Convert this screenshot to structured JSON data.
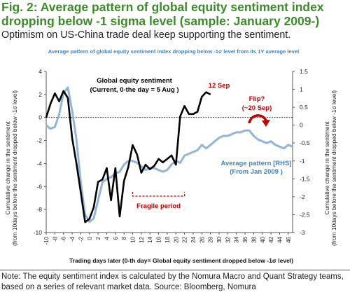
{
  "header": {
    "title": "Fig. 2: Average pattern of global equity sentiment index dropping below -1 sigma level (sample: January 2009-)",
    "subtitle": "Optimism on US-China trade deal keep supporting the sentiment."
  },
  "note": "Note: The equity sentiment index is calculated by the Nomura Macro and Quant Strategy teams, based on a series of relevant market data. Source: Bloomberg, Nomura",
  "colors": {
    "current_series": "#000000",
    "average_series": "#92b4d6",
    "accent_text": "#3f83c4",
    "annotation_red": "#c00000",
    "title_green": "#3c8a29"
  },
  "chart_data": {
    "type": "line",
    "title": "Average pattern of global equity sentiment index dropping below -1σ level from its 1Y average level",
    "xlabel": "Trading days later (0-th day= Global equity sentiment dropped below -1σ level)",
    "ylabel_left": [
      "Cumulative change in the sentiment",
      "(from 10days before the sentiment dropped below -1σ level)"
    ],
    "ylabel_right": [
      "Cumulative change in the sentiment",
      "(from 10days before the sentiment dropped below -1σ level)"
    ],
    "ylim_left": [
      -10,
      4
    ],
    "ylim_right": [
      -3,
      1.5
    ],
    "xlim": [
      -10,
      47
    ],
    "yticks_left": [
      4,
      2,
      0,
      -2,
      -4,
      -6,
      -8,
      -10
    ],
    "yticks_right": [
      1.5,
      1,
      0.5,
      0,
      -0.5,
      -1,
      -1.5,
      -2,
      -2.5,
      -3
    ],
    "xticks": [
      -10,
      -8,
      -6,
      -4,
      -2,
      0,
      2,
      4,
      6,
      8,
      10,
      12,
      14,
      16,
      18,
      20,
      22,
      24,
      26,
      28,
      30,
      32,
      34,
      36,
      38,
      40,
      42,
      44,
      46
    ],
    "grid": false,
    "series": [
      {
        "name": "Global equity sentiment (Current, 0-the day = 5 Aug )",
        "axis": "left",
        "x": [
          -10,
          -9,
          -8,
          -7,
          -6,
          -5,
          -4,
          -3,
          -2,
          -1,
          0,
          1,
          2,
          3,
          4,
          5,
          6,
          7,
          8,
          9,
          10,
          11,
          12,
          13,
          14,
          15,
          16,
          17,
          18,
          19,
          20,
          21,
          22,
          23,
          24,
          25,
          26,
          27,
          28
        ],
        "y": [
          0,
          1.2,
          2.1,
          1.4,
          2.3,
          1.7,
          -1.8,
          -4,
          -6.5,
          -9.1,
          -8.8,
          -7.8,
          -5.6,
          -5.4,
          -4.4,
          -7.2,
          -4.4,
          -8.6,
          -5.5,
          -4.3,
          -2.4,
          -3.2,
          -4.8,
          -4.1,
          -4.5,
          -4.2,
          -3.6,
          -3.9,
          -3.6,
          -3.3,
          -4.1,
          0.1,
          1,
          0.3,
          0.3,
          0.5,
          1.8,
          2.2,
          2
        ]
      },
      {
        "name": "Average pattern [RHS] (From Jan 2009 )",
        "axis": "right",
        "x": [
          -10,
          -9,
          -8,
          -7,
          -6,
          -5,
          -4,
          -3,
          -2,
          -1,
          0,
          1,
          2,
          3,
          4,
          5,
          6,
          7,
          8,
          9,
          10,
          11,
          12,
          13,
          14,
          15,
          16,
          17,
          18,
          19,
          20,
          21,
          22,
          23,
          24,
          25,
          26,
          27,
          28,
          29,
          30,
          31,
          32,
          33,
          34,
          35,
          36,
          37,
          38,
          39,
          40,
          41,
          42,
          43,
          44,
          45,
          46,
          47
        ],
        "y": [
          0,
          -0.1,
          -0.05,
          0.3,
          0.9,
          1.05,
          0.4,
          -0.4,
          -1.6,
          -2.5,
          -2.7,
          -2.6,
          -2.1,
          -1.6,
          -1.5,
          -1.45,
          -1.35,
          -1.3,
          -1.1,
          -1,
          -1,
          -1.05,
          -1.15,
          -1.25,
          -1.2,
          -1.2,
          -1.25,
          -1.3,
          -1.25,
          -1.1,
          -1,
          -1.05,
          -0.85,
          -0.8,
          -0.75,
          -0.7,
          -0.55,
          -0.65,
          -0.55,
          -0.45,
          -0.35,
          -0.3,
          -0.3,
          -0.25,
          -0.2,
          -0.2,
          -0.15,
          -0.15,
          -0.3,
          -0.4,
          -0.45,
          -0.5,
          -0.45,
          -0.55,
          -0.6,
          -0.65,
          -0.55,
          -0.6
        ]
      }
    ],
    "annotations": {
      "current_title": "Global equity sentiment",
      "current_sub": "(Current, 0-the day = 5 Aug )",
      "latest_label": "12 Sep",
      "flip_label": "Flip?",
      "flip_sub": "(~20 Sep)",
      "avg_title": "Average pattern [RHS]",
      "avg_sub": "(From Jan 2009 )",
      "fragile_label": "Fragile period",
      "fragile_range": [
        10,
        22
      ]
    }
  }
}
